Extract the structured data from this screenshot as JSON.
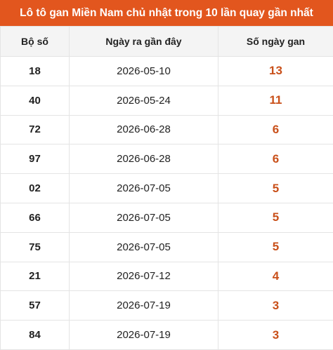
{
  "header": {
    "title": "Lô tô gan Miền Nam chủ nhật trong 10 lần quay gần nhất"
  },
  "table": {
    "columns": [
      "Bộ số",
      "Ngày ra gần đây",
      "Số ngày gan"
    ],
    "rows": [
      [
        "18",
        "2026-05-10",
        13
      ],
      [
        "40",
        "2026-05-24",
        11
      ],
      [
        "72",
        "2026-06-28",
        6
      ],
      [
        "97",
        "2026-06-28",
        6
      ],
      [
        "02",
        "2026-07-05",
        5
      ],
      [
        "66",
        "2026-07-05",
        5
      ],
      [
        "75",
        "2026-07-05",
        5
      ],
      [
        "21",
        "2026-07-12",
        4
      ],
      [
        "57",
        "2026-07-19",
        3
      ],
      [
        "84",
        "2026-07-19",
        3
      ]
    ]
  }
}
